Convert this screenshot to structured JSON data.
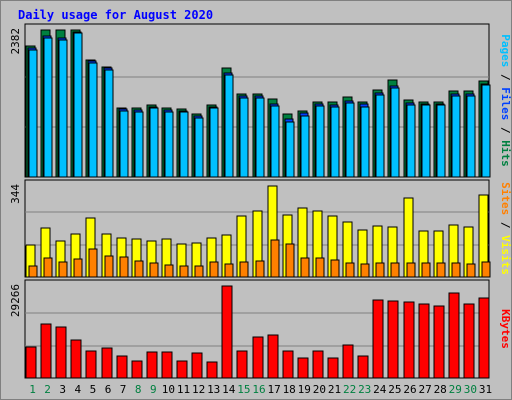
{
  "title": "Daily usage for August 2020",
  "colors": {
    "frame_bg": "#c0c0c0",
    "panel_bg": "#c0c0c0",
    "gridline": "#808080",
    "pages": "#00c0ff",
    "files": "#0040ff",
    "hits": "#008040",
    "visits": "#ffff00",
    "sites": "#ff8000",
    "kbytes": "#ff0000",
    "weekday_tick": "#000000",
    "weekend_tick": "#008040"
  },
  "panels": {
    "hits_files_pages": {
      "y_max_label": "2382",
      "right_labels": [
        {
          "text": "Pages",
          "color": "#00c0ff"
        },
        {
          "text": " / ",
          "color": "#000000"
        },
        {
          "text": "Files",
          "color": "#0040ff"
        },
        {
          "text": " / ",
          "color": "#000000"
        },
        {
          "text": "Hits",
          "color": "#008040"
        }
      ]
    },
    "visits_sites": {
      "y_max_label": "344",
      "right_labels": [
        {
          "text": "Sites",
          "color": "#ff8000"
        },
        {
          "text": " / ",
          "color": "#000000"
        },
        {
          "text": "Visits",
          "color": "#ffff00"
        }
      ]
    },
    "kbytes": {
      "y_max_label": "29266",
      "right_labels": [
        {
          "text": "KBytes",
          "color": "#ff0000"
        }
      ]
    }
  },
  "chart_data": {
    "type": "bar",
    "title": "Daily usage for August 2020",
    "x": [
      "1",
      "2",
      "3",
      "4",
      "5",
      "6",
      "7",
      "8",
      "9",
      "10",
      "11",
      "12",
      "13",
      "14",
      "15",
      "16",
      "17",
      "18",
      "19",
      "20",
      "21",
      "22",
      "23",
      "24",
      "25",
      "26",
      "27",
      "28",
      "29",
      "30",
      "31"
    ],
    "weekend_days": [
      "1",
      "2",
      "8",
      "9",
      "15",
      "16",
      "22",
      "23",
      "29",
      "30"
    ],
    "series": [
      {
        "name": "Hits",
        "panel": "hits_files_pages",
        "ymax": 2382,
        "values": [
          2119,
          2382,
          2382,
          2382,
          1903,
          1787,
          1119,
          1119,
          1167,
          1119,
          1095,
          1023,
          1167,
          1762,
          1343,
          1343,
          1262,
          1015,
          1072,
          1222,
          1222,
          1295,
          1222,
          1416,
          1566,
          1246,
          1222,
          1222,
          1400,
          1391,
          1554
        ]
      },
      {
        "name": "Files",
        "panel": "hits_files_pages",
        "ymax": 2382,
        "values": [
          2086,
          2292,
          2260,
          2357,
          1878,
          1762,
          1095,
          1087,
          1137,
          1087,
          1071,
          991,
          1137,
          1687,
          1311,
          1311,
          1190,
          934,
          1030,
          1190,
          1174,
          1239,
          1190,
          1367,
          1471,
          1206,
          1190,
          1190,
          1351,
          1343,
          1514
        ]
      },
      {
        "name": "Pages",
        "panel": "hits_files_pages",
        "ymax": 2382,
        "values": [
          2062,
          2260,
          2221,
          2332,
          1854,
          1738,
          1063,
          1047,
          1111,
          1047,
          1047,
          959,
          1111,
          1654,
          1279,
          1279,
          1150,
          895,
          991,
          1150,
          1142,
          1206,
          1142,
          1327,
          1439,
          1174,
          1166,
          1166,
          1319,
          1311,
          1489
        ]
      },
      {
        "name": "Visits",
        "panel": "visits_sites",
        "ymax": 344,
        "values": [
          122,
          185,
          137,
          164,
          224,
          163,
          148,
          145,
          136,
          145,
          126,
          128,
          147,
          158,
          231,
          250,
          344,
          236,
          259,
          251,
          230,
          209,
          178,
          191,
          190,
          299,
          174,
          172,
          196,
          188,
          311
        ]
      },
      {
        "name": "Sites",
        "panel": "visits_sites",
        "ymax": 344,
        "values": [
          41,
          73,
          55,
          68,
          106,
          78,
          76,
          59,
          53,
          47,
          43,
          41,
          56,
          49,
          55,
          60,
          140,
          126,
          72,
          70,
          64,
          53,
          51,
          52,
          53,
          54,
          52,
          52,
          54,
          48,
          58
        ]
      },
      {
        "name": "KBytes",
        "panel": "kbytes",
        "ymax": 29266,
        "values": [
          9813,
          17062,
          16066,
          12072,
          8663,
          9460,
          6934,
          5274,
          8221,
          8130,
          5251,
          7862,
          5234,
          29266,
          8710,
          13002,
          13528,
          8731,
          6491,
          8733,
          6394,
          10641,
          7115,
          24929,
          24629,
          24080,
          23658,
          22934,
          27023,
          23381,
          25570
        ]
      }
    ]
  }
}
